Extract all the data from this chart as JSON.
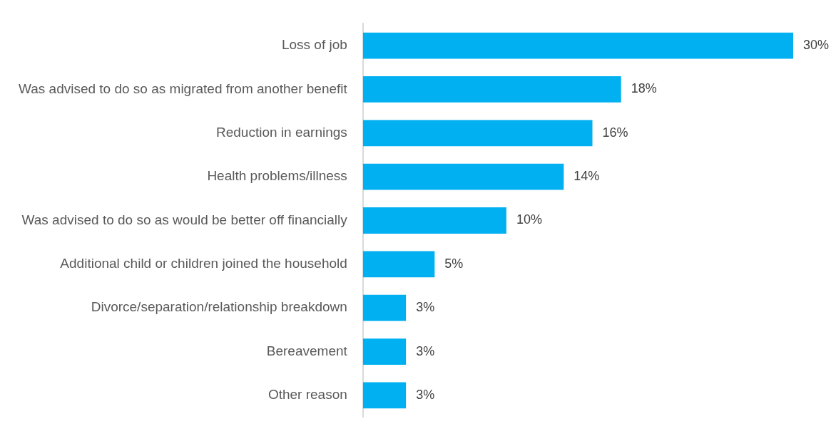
{
  "chart_data": {
    "type": "bar",
    "orientation": "horizontal",
    "categories": [
      "Loss of job",
      "Was advised to do so as migrated from another benefit",
      "Reduction in earnings",
      "Health problems/illness",
      "Was advised to do so as would be better off financially",
      "Additional child or children joined the household",
      "Divorce/separation/relationship breakdown",
      "Bereavement",
      "Other reason"
    ],
    "values": [
      30,
      18,
      16,
      14,
      10,
      5,
      3,
      3,
      3
    ],
    "value_labels": [
      "30%",
      "18%",
      "16%",
      "14%",
      "10%",
      "5%",
      "3%",
      "3%",
      "3%"
    ],
    "color": "#00b0f0",
    "legend": false,
    "tick_labels": "y"
  }
}
